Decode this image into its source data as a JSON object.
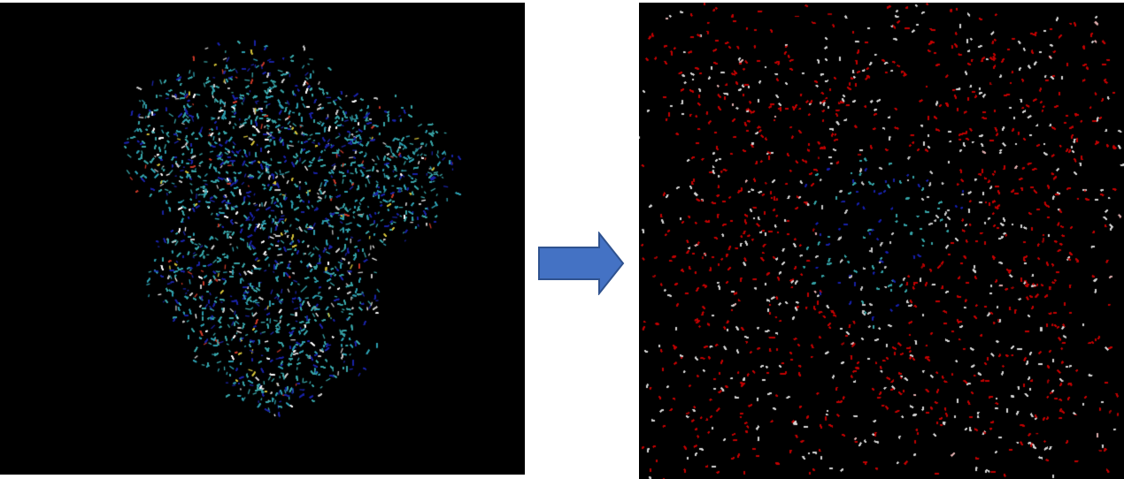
{
  "left_panel": {
    "content": "protein-molecule",
    "background_color": "#000000",
    "atom_colors": [
      "#3aa5a8",
      "#2f9fb0",
      "#1b24a6",
      "#c9c9c9",
      "#ffffff",
      "#c83a2a",
      "#d4c23a"
    ]
  },
  "arrow": {
    "icon": "right-arrow-icon",
    "fill_color": "#4472c4",
    "stroke_color": "#2f528f"
  },
  "right_panel": {
    "content": "solvated-protein-box",
    "background_color": "#000000",
    "water_colors": [
      "#c40000",
      "#d8d8d8",
      "#e0b0b0",
      "#9c0000"
    ],
    "protein_colors": [
      "#3aa5a8",
      "#1b24a6",
      "#c9c9c9"
    ]
  }
}
